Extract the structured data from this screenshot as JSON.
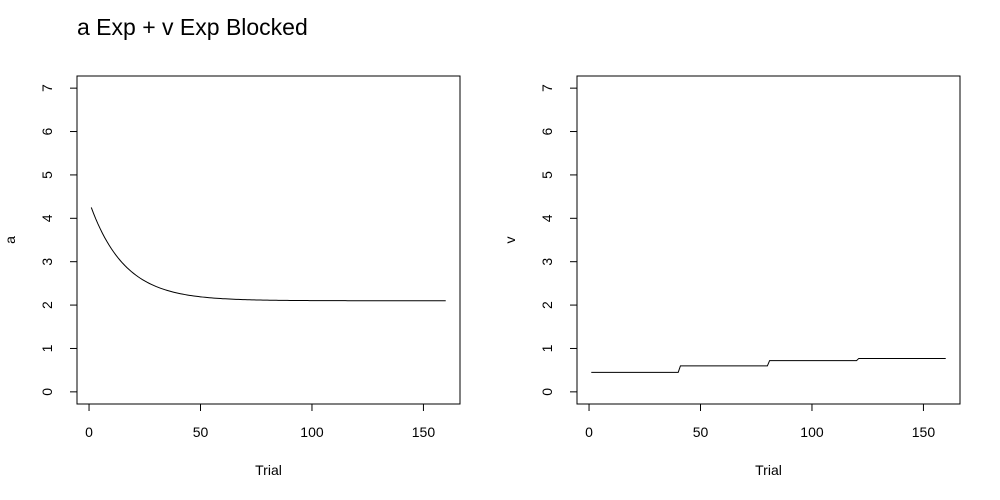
{
  "figure_title": "a Exp + v Exp Blocked",
  "chart_data": [
    {
      "type": "line",
      "title": "",
      "xlabel": "Trial",
      "ylabel": "a",
      "xlim": [
        -5.4,
        166.4
      ],
      "ylim": [
        -0.28,
        7.28
      ],
      "xticks": [
        0,
        50,
        100,
        150
      ],
      "yticks": [
        0,
        1,
        2,
        3,
        4,
        5,
        6,
        7
      ],
      "grid": false,
      "series": [
        {
          "name": "a",
          "model": "exponential",
          "x": [
            1,
            5,
            10,
            15,
            20,
            25,
            30,
            35,
            40,
            45,
            50,
            55,
            60,
            70,
            80,
            90,
            100,
            110,
            120,
            130,
            140,
            150,
            160
          ],
          "values": [
            4.25,
            3.76,
            3.29,
            2.96,
            2.72,
            2.55,
            2.43,
            2.35,
            2.29,
            2.24,
            2.21,
            2.19,
            2.17,
            2.14,
            2.12,
            2.11,
            2.11,
            2.11,
            2.1,
            2.1,
            2.1,
            2.1,
            2.1
          ]
        }
      ]
    },
    {
      "type": "line",
      "title": "",
      "xlabel": "Trial",
      "ylabel": "v",
      "xlim": [
        -5.4,
        166.4
      ],
      "ylim": [
        -0.28,
        7.28
      ],
      "xticks": [
        0,
        50,
        100,
        150
      ],
      "yticks": [
        0,
        1,
        2,
        3,
        4,
        5,
        6,
        7
      ],
      "grid": false,
      "series": [
        {
          "name": "v",
          "model": "blocked step",
          "x": [
            1,
            40,
            41,
            80,
            81,
            120,
            121,
            160
          ],
          "values": [
            0.45,
            0.45,
            0.6,
            0.6,
            0.72,
            0.72,
            0.77,
            0.77
          ]
        }
      ]
    }
  ]
}
